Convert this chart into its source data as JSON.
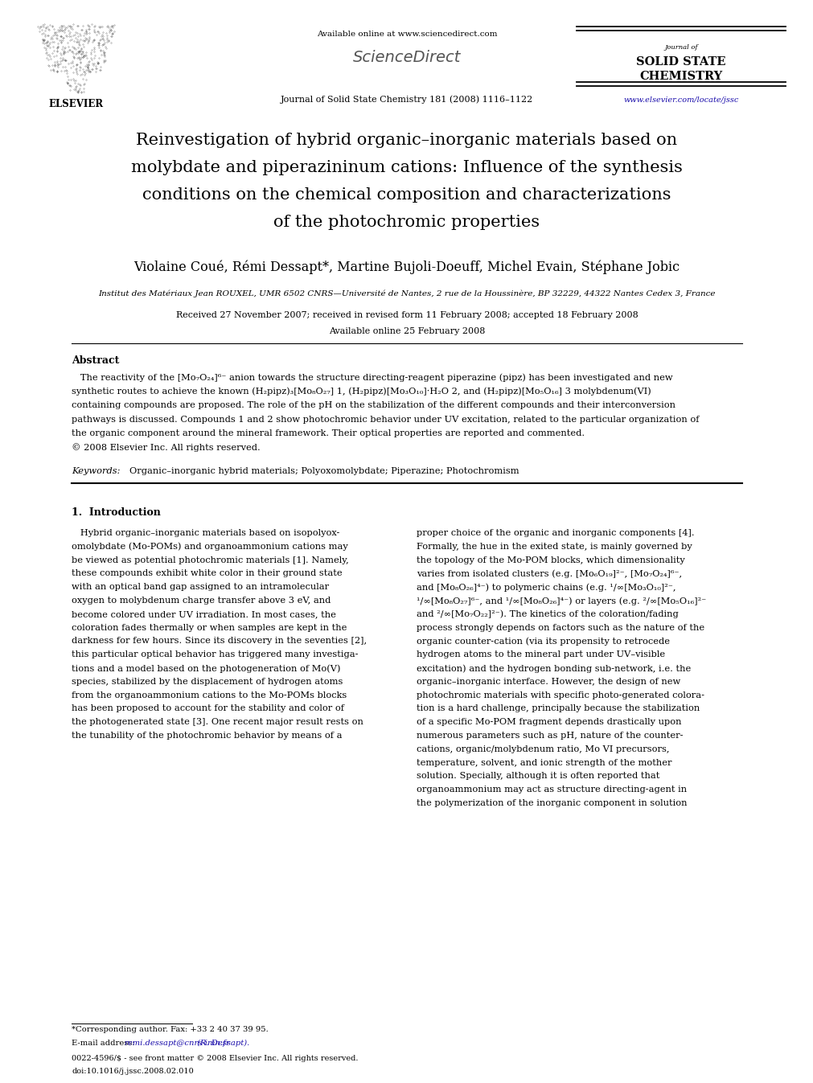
{
  "background_color": "#ffffff",
  "page_width": 9.92,
  "page_height": 13.23,
  "dpi": 100,
  "header": {
    "available_online_text": "Available online at www.sciencedirect.com",
    "sciencedirect_text": "ScienceDirect",
    "journal_info": "Journal of Solid State Chemistry 181 (2008) 1116–1122",
    "journal_name_line1": "Journal of",
    "journal_name_line2": "Solid State",
    "journal_name_line3": "Chemistry",
    "url_text": "www.elsevier.com/locate/jssc",
    "url_color": "#1a0dab",
    "elsevier_text": "ELSEVIER"
  },
  "title_lines": [
    "Reinvestigation of hybrid organic–inorganic materials based on",
    "molybdate and piperazininum cations: Influence of the synthesis",
    "conditions on the chemical composition and characterizations",
    "of the photochromic properties"
  ],
  "authors": "Violaine Coué, Rémi Dessapt*, Martine Bujoli-Doeuff, Michel Evain, Stéphane Jobic",
  "affiliation": "Institut des Matériaux Jean ROUXEL, UMR 6502 CNRS—Université de Nantes, 2 rue de la Houssinère, BP 32229, 44322 Nantes Cedex 3, France",
  "received": "Received 27 November 2007; received in revised form 11 February 2008; accepted 18 February 2008",
  "available_online": "Available online 25 February 2008",
  "abstract_title": "Abstract",
  "abstract_lines": [
    "   The reactivity of the [Mo₇O₂₄]⁶⁻ anion towards the structure directing-reagent piperazine (pipz) has been investigated and new",
    "synthetic routes to achieve the known (H₂pipz)₃[Mo₈O₂₇] 1, (H₂pipz)[Mo₃O₁₀]·H₂O 2, and (H₂pipz)[Mo₅O₁₆] 3 molybdenum(VI)",
    "containing compounds are proposed. The role of the pH on the stabilization of the different compounds and their interconversion",
    "pathways is discussed. Compounds 1 and 2 show photochromic behavior under UV excitation, related to the particular organization of",
    "the organic component around the mineral framework. Their optical properties are reported and commented.",
    "© 2008 Elsevier Inc. All rights reserved."
  ],
  "keywords_label": "Keywords:",
  "keywords_text": "Organic–inorganic hybrid materials; Polyoxomolybdate; Piperazine; Photochromism",
  "section1_title": "1.  Introduction",
  "col1_lines": [
    "   Hybrid organic–inorganic materials based on isopolyox-",
    "omolybdate (Mo-POMs) and organoammonium cations may",
    "be viewed as potential photochromic materials [1]. Namely,",
    "these compounds exhibit white color in their ground state",
    "with an optical band gap assigned to an intramolecular",
    "oxygen to molybdenum charge transfer above 3 eV, and",
    "become colored under UV irradiation. In most cases, the",
    "coloration fades thermally or when samples are kept in the",
    "darkness for few hours. Since its discovery in the seventies [2],",
    "this particular optical behavior has triggered many investiga-",
    "tions and a model based on the photogeneration of Mo(V)",
    "species, stabilized by the displacement of hydrogen atoms",
    "from the organoammonium cations to the Mo-POMs blocks",
    "has been proposed to account for the stability and color of",
    "the photogenerated state [3]. One recent major result rests on",
    "the tunability of the photochromic behavior by means of a"
  ],
  "col2_lines": [
    "proper choice of the organic and inorganic components [4].",
    "Formally, the hue in the exited state, is mainly governed by",
    "the topology of the Mo-POM blocks, which dimensionality",
    "varies from isolated clusters (e.g. [Mo₆O₁₉]²⁻, [Mo₇O₂₄]⁶⁻,",
    "and [Mo₈O₂₆]⁴⁻) to polymeric chains (e.g. ¹/∞[Mo₃O₁₀]²⁻,",
    "¹/∞[Mo₈O₂₇]⁶⁻, and ¹/∞[Mo₈O₂₆]⁴⁻) or layers (e.g. ²/∞[Mo₅O₁₆]²⁻",
    "and ²/∞[Mo₇O₂₂]²⁻). The kinetics of the coloration/fading",
    "process strongly depends on factors such as the nature of the",
    "organic counter-cation (via its propensity to retrocede",
    "hydrogen atoms to the mineral part under UV–visible",
    "excitation) and the hydrogen bonding sub-network, i.e. the",
    "organic–inorganic interface. However, the design of new",
    "photochromic materials with specific photo-generated colora-",
    "tion is a hard challenge, principally because the stabilization",
    "of a specific Mo-POM fragment depends drastically upon",
    "numerous parameters such as pH, nature of the counter-",
    "cations, organic/molybdenum ratio, Mo VI precursors,",
    "temperature, solvent, and ionic strength of the mother",
    "solution. Specially, although it is often reported that",
    "organoammonium may act as structure directing-agent in",
    "the polymerization of the inorganic component in solution"
  ],
  "footnote_line": "*Corresponding author. Fax: +33 2 40 37 39 95.",
  "footnote_email_prefix": "E-mail address: ",
  "footnote_email_link": "remi.dessapt@cnrs-imn.fr",
  "footnote_email_suffix": " (R. Dessapt).",
  "footer1": "0022-4596/$ - see front matter © 2008 Elsevier Inc. All rights reserved.",
  "footer2": "doi:10.1016/j.jssc.2008.02.010",
  "link_color": "#1a0dab"
}
